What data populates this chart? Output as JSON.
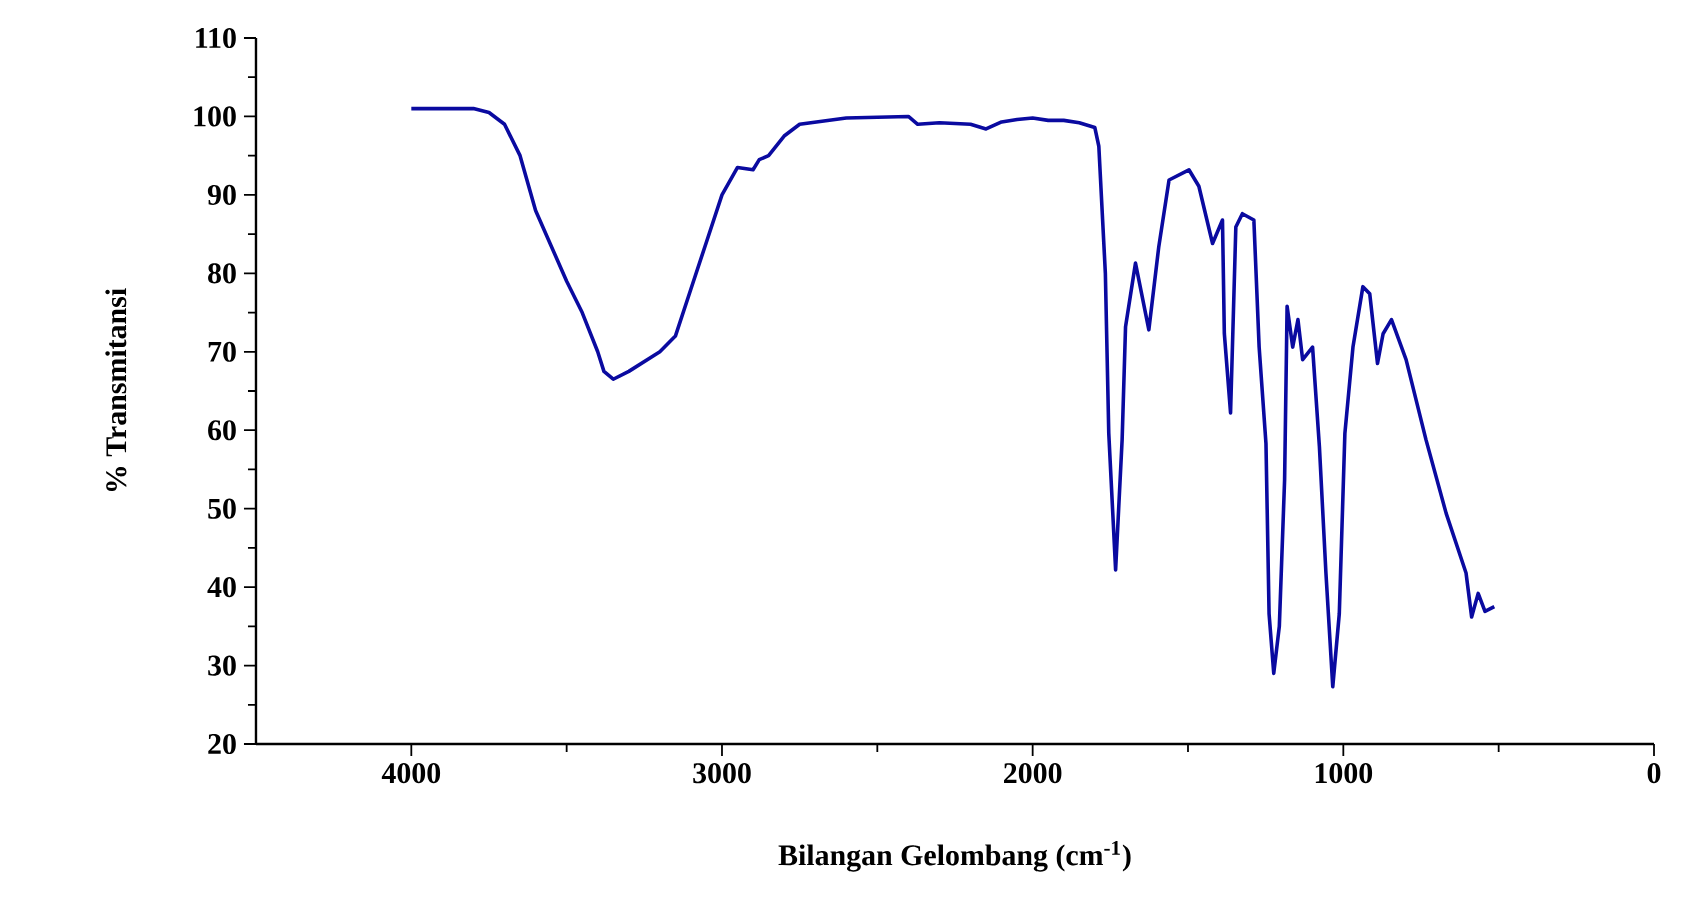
{
  "chart_data": {
    "type": "line",
    "xlabel": "Bilangan Gelombang (cm$^{-1}$)",
    "ylabel": "% Transmitansi",
    "xlim": [
      4500,
      0
    ],
    "ylim": [
      20,
      110
    ],
    "xticks": [
      4000,
      3000,
      2000,
      1000,
      0
    ],
    "yticks": [
      20,
      30,
      40,
      50,
      60,
      70,
      80,
      90,
      100,
      110
    ],
    "grid": false,
    "marker": "none",
    "line_style": "solid",
    "series": [
      {
        "color": "#0a0aa0",
        "x": [
          4000,
          3800,
          3750,
          3700,
          3650,
          3600,
          3500,
          3450,
          3400,
          3380,
          3350,
          3300,
          3200,
          3150,
          3100,
          3050,
          3000,
          2950,
          2900,
          2880,
          2850,
          2800,
          2750,
          2600,
          2400,
          2370,
          2300,
          2200,
          2150,
          2100,
          2050,
          2000,
          1950,
          1900,
          1850,
          1800,
          1787,
          1766,
          1755,
          1733,
          1712,
          1701,
          1669,
          1626,
          1594,
          1561,
          1497,
          1465,
          1421,
          1389,
          1383,
          1363,
          1346,
          1325,
          1288,
          1271,
          1249,
          1239,
          1224,
          1206,
          1189,
          1181,
          1163,
          1146,
          1131,
          1099,
          1077,
          1056,
          1034,
          1013,
          995,
          969,
          937,
          915,
          890,
          872,
          845,
          798,
          734,
          669,
          605,
          587,
          566,
          544,
          514
        ],
        "values": [
          101,
          101,
          100.5,
          99,
          95,
          88,
          79,
          75,
          70,
          67.5,
          66.5,
          67.5,
          70,
          72,
          78,
          84,
          90,
          93.5,
          93.2,
          94.5,
          95,
          97.5,
          99,
          99.8,
          100,
          99,
          99.2,
          99,
          98.4,
          99.3,
          99.6,
          99.8,
          99.5,
          99.5,
          99.2,
          98.6,
          96.2,
          80.0,
          59.6,
          42.2,
          58.8,
          73.2,
          81.3,
          72.8,
          83.4,
          91.9,
          93.2,
          91.1,
          83.8,
          86.8,
          72.3,
          62.2,
          85.9,
          87.6,
          86.8,
          70.6,
          58.3,
          36.6,
          29.0,
          35.0,
          53.7,
          75.8,
          70.6,
          74.1,
          69.0,
          70.6,
          57.9,
          41.8,
          27.3,
          36.6,
          59.6,
          70.6,
          78.3,
          77.4,
          68.5,
          72.3,
          74.1,
          69.0,
          58.8,
          49.4,
          41.8,
          36.2,
          39.2,
          36.9,
          37.5
        ]
      }
    ]
  }
}
